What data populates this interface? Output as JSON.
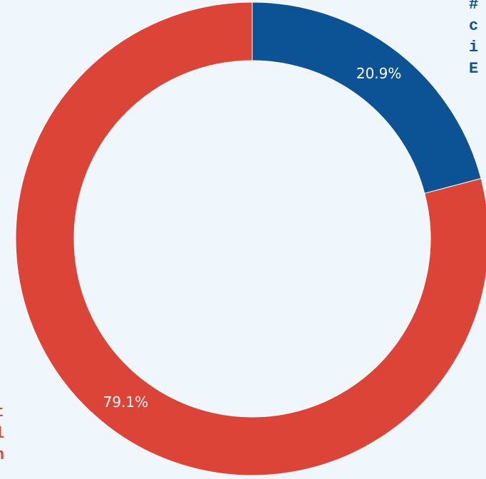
{
  "chart_data": {
    "type": "pie",
    "donut": true,
    "title": "",
    "categories": [
      "",
      ""
    ],
    "values": [
      20.9,
      79.1
    ],
    "value_labels": [
      "20.9%",
      "79.1%"
    ],
    "colors": [
      "#0b5394",
      "#db4437"
    ],
    "legend": [
      {
        "color": "#0b5394",
        "placement": "top-right",
        "lines": [
          "#",
          "c",
          "i",
          "E"
        ]
      },
      {
        "color": "#db4437",
        "placement": "bottom-left",
        "lines": [
          "thout",
          "chool",
          "on on"
        ]
      }
    ]
  },
  "page": {
    "background": "#f0f7fc"
  }
}
